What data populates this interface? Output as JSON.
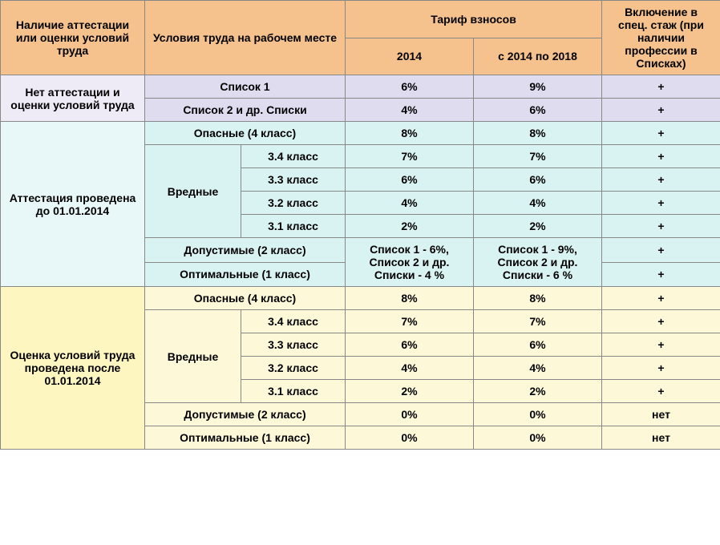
{
  "header": {
    "col1": "Наличие аттестации или оценки условий труда",
    "col2": "Условия труда на рабочем месте",
    "col3_group": "Тариф взносов",
    "col3a": "2014",
    "col3b": "с 2014 по 2018",
    "col4": "Включение в спец. стаж (при наличии профессии в Списках)"
  },
  "sections": {
    "s1": {
      "label": "Нет аттестации и оценки условий труда",
      "rows": [
        {
          "cond": "Список 1",
          "y2014": "6%",
          "y2018": "9%",
          "incl": "+"
        },
        {
          "cond": "Список 2 и др. Списки",
          "y2014": "4%",
          "y2018": "6%",
          "incl": "+"
        }
      ]
    },
    "s2": {
      "label": "Аттестация проведена до 01.01.2014",
      "danger": {
        "cond": "Опасные (4 класс)",
        "y2014": "8%",
        "y2018": "8%",
        "incl": "+"
      },
      "harmful_label": "Вредные",
      "harmful": [
        {
          "cls": "3.4 класс",
          "y2014": "7%",
          "y2018": "7%",
          "incl": "+"
        },
        {
          "cls": "3.3 класс",
          "y2014": "6%",
          "y2018": "6%",
          "incl": "+"
        },
        {
          "cls": "3.2 класс",
          "y2014": "4%",
          "y2018": "4%",
          "incl": "+"
        },
        {
          "cls": "3.1 класс",
          "y2014": "2%",
          "y2018": "2%",
          "incl": "+"
        }
      ],
      "acceptable": {
        "cond": "Допустимые (2 класс)",
        "incl": "+"
      },
      "optimal": {
        "cond": "Оптимальные (1 класс)",
        "incl": "+"
      },
      "merged_2014": "Список 1 - 6%, Список 2 и др. Списки - 4 %",
      "merged_2018": "Список 1 - 9%, Список 2 и др. Списки - 6 %"
    },
    "s3": {
      "label": "Оценка условий труда проведена после 01.01.2014",
      "danger": {
        "cond": "Опасные (4 класс)",
        "y2014": "8%",
        "y2018": "8%",
        "incl": "+"
      },
      "harmful_label": "Вредные",
      "harmful": [
        {
          "cls": "3.4 класс",
          "y2014": "7%",
          "y2018": "7%",
          "incl": "+"
        },
        {
          "cls": "3.3 класс",
          "y2014": "6%",
          "y2018": "6%",
          "incl": "+"
        },
        {
          "cls": "3.2 класс",
          "y2014": "4%",
          "y2018": "4%",
          "incl": "+"
        },
        {
          "cls": "3.1 класс",
          "y2014": "2%",
          "y2018": "2%",
          "incl": "+"
        }
      ],
      "acceptable": {
        "cond": "Допустимые (2 класс)",
        "y2014": "0%",
        "y2018": "0%",
        "incl": "нет"
      },
      "optimal": {
        "cond": "Оптимальные (1 класс)",
        "y2014": "0%",
        "y2018": "0%",
        "incl": "нет"
      }
    }
  },
  "colors": {
    "header_bg": "#f5c28d",
    "section1_bg": "#e0dcf0",
    "section2_bg": "#d9f2f2",
    "section3_bg": "#fdf8d8",
    "border": "#888888"
  }
}
